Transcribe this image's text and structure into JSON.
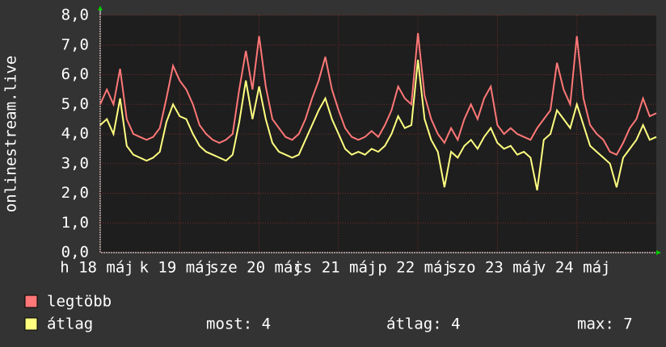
{
  "chart_data": {
    "type": "line",
    "y_label": "onlinestream.live",
    "x": [
      0,
      2,
      4,
      6,
      8,
      10,
      12,
      14,
      16,
      18,
      20,
      22,
      24,
      26,
      28,
      30,
      32,
      34,
      36,
      38,
      40,
      42,
      44,
      46,
      48,
      50,
      52,
      54,
      56,
      58,
      60,
      62,
      64,
      66,
      68,
      70,
      72,
      74,
      76,
      78,
      80,
      82,
      84,
      86,
      88,
      90,
      92,
      94,
      96,
      98,
      100,
      102,
      104,
      106,
      108,
      110,
      112,
      114,
      116,
      118,
      120,
      122,
      124,
      126,
      128,
      130,
      132,
      134,
      136,
      138,
      140,
      142,
      144,
      146,
      148,
      150,
      152,
      154,
      156,
      158,
      160,
      162,
      164,
      166,
      168
    ],
    "series": [
      {
        "name": "legtöbb",
        "color": "#ff7777",
        "values": [
          5.0,
          5.5,
          5.0,
          6.2,
          4.5,
          4.0,
          3.9,
          3.8,
          3.9,
          4.2,
          5.2,
          6.3,
          5.8,
          5.5,
          5.0,
          4.3,
          4.0,
          3.8,
          3.7,
          3.8,
          4.0,
          5.5,
          6.8,
          5.5,
          7.3,
          5.6,
          4.5,
          4.2,
          3.9,
          3.8,
          4.0,
          4.5,
          5.2,
          5.8,
          6.6,
          5.5,
          4.8,
          4.2,
          3.9,
          3.8,
          3.9,
          4.1,
          3.9,
          4.3,
          4.8,
          5.6,
          5.2,
          5.0,
          7.4,
          5.3,
          4.5,
          4.0,
          3.7,
          4.2,
          3.8,
          4.5,
          5.0,
          4.5,
          5.2,
          5.6,
          4.3,
          4.0,
          4.2,
          4.0,
          3.9,
          3.8,
          4.2,
          4.5,
          4.8,
          6.4,
          5.5,
          5.0,
          7.3,
          5.2,
          4.3,
          4.0,
          3.8,
          3.4,
          3.3,
          3.7,
          4.2,
          4.5,
          5.2,
          4.6,
          4.7
        ]
      },
      {
        "name": "átlag",
        "color": "#ffff80",
        "values": [
          4.3,
          4.5,
          4.0,
          5.2,
          3.6,
          3.3,
          3.2,
          3.1,
          3.2,
          3.4,
          4.4,
          5.0,
          4.6,
          4.5,
          4.0,
          3.6,
          3.4,
          3.3,
          3.2,
          3.1,
          3.3,
          4.4,
          5.8,
          4.5,
          5.6,
          4.5,
          3.7,
          3.4,
          3.3,
          3.2,
          3.3,
          3.8,
          4.3,
          4.8,
          5.2,
          4.5,
          4.0,
          3.5,
          3.3,
          3.4,
          3.3,
          3.5,
          3.4,
          3.6,
          4.0,
          4.6,
          4.2,
          4.3,
          6.5,
          4.5,
          3.8,
          3.4,
          2.2,
          3.4,
          3.2,
          3.6,
          3.8,
          3.5,
          3.9,
          4.2,
          3.7,
          3.5,
          3.6,
          3.3,
          3.4,
          3.2,
          2.1,
          3.8,
          4.0,
          4.8,
          4.5,
          4.2,
          5.0,
          4.3,
          3.6,
          3.4,
          3.2,
          3.0,
          2.2,
          3.2,
          3.5,
          3.8,
          4.3,
          3.8,
          3.9
        ]
      }
    ],
    "xlim": [
      0,
      168
    ],
    "xticks": [
      {
        "value": 0,
        "label": "h 18 máj"
      },
      {
        "value": 24,
        "label": "k 19 máj"
      },
      {
        "value": 48,
        "label": "sze 20 máj"
      },
      {
        "value": 72,
        "label": "cs 21 máj"
      },
      {
        "value": 96,
        "label": "p 22 máj"
      },
      {
        "value": 120,
        "label": "szo 23 máj"
      },
      {
        "value": 144,
        "label": "v 24 máj"
      }
    ],
    "ylim": [
      0,
      8
    ],
    "yticks": [
      {
        "value": 0,
        "label": "0,0"
      },
      {
        "value": 1,
        "label": "1,0"
      },
      {
        "value": 2,
        "label": "2,0"
      },
      {
        "value": 3,
        "label": "3,0"
      },
      {
        "value": 4,
        "label": "4,0"
      },
      {
        "value": 5,
        "label": "5,0"
      },
      {
        "value": 6,
        "label": "6,0"
      },
      {
        "value": 7,
        "label": "7,0"
      },
      {
        "value": 8,
        "label": "8,0"
      }
    ],
    "grid": true,
    "stats": [
      "most: 4",
      "átlag: 4",
      "max: 7"
    ]
  }
}
